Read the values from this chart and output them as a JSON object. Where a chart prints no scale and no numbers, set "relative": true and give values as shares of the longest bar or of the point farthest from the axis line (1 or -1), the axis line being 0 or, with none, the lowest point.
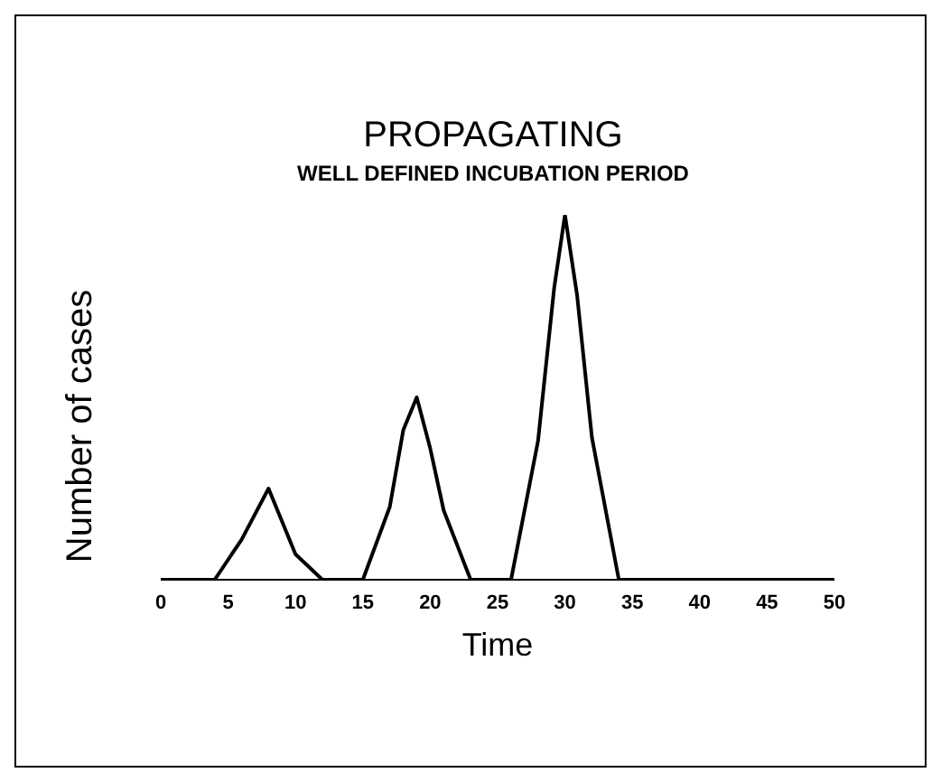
{
  "chart_data": {
    "type": "line",
    "title": "PROPAGATING",
    "subtitle": "WELL DEFINED INCUBATION PERIOD",
    "xlabel": "Time",
    "ylabel": "Number of cases",
    "relative": true,
    "grid": false,
    "legend": false,
    "marker": "none",
    "line_style": "solid",
    "x": [
      0,
      4,
      6,
      8,
      10,
      12,
      15,
      17,
      18,
      19,
      20,
      21,
      23,
      26,
      28,
      29.2,
      30,
      30.9,
      32,
      34,
      50
    ],
    "series": [
      {
        "color": "#000000",
        "values": [
          0,
          0,
          0.11,
          0.25,
          0.07,
          0,
          0,
          0.2,
          0.41,
          0.5,
          0.36,
          0.19,
          0,
          0,
          0.38,
          0.8,
          1,
          0.78,
          0.39,
          0,
          0
        ]
      }
    ],
    "xlim": [
      0,
      50
    ],
    "xticks": [
      0,
      5,
      10,
      15,
      20,
      25,
      30,
      35,
      40,
      45,
      50
    ]
  }
}
